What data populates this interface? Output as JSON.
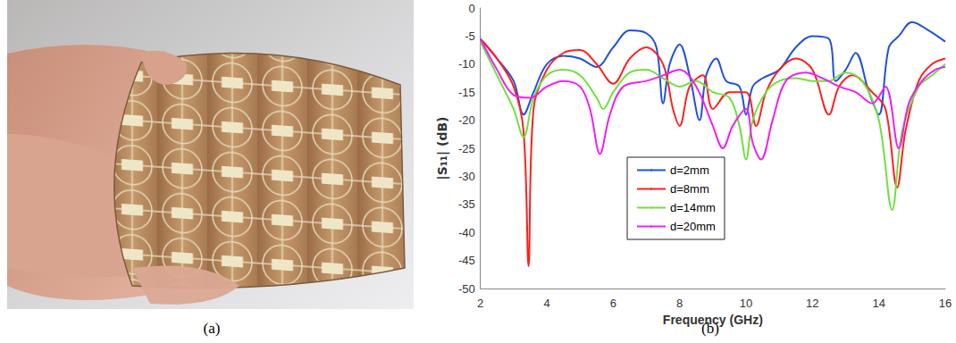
{
  "panels": {
    "a": "(a)",
    "b": "(b)"
  },
  "chart_data": {
    "type": "line",
    "x_label": "Frequency (GHz)",
    "y_label": "|S₁₁| (dB)",
    "xlim": [
      2,
      16
    ],
    "xticks": [
      2,
      4,
      6,
      8,
      10,
      12,
      14,
      16
    ],
    "ylim": [
      -50,
      0
    ],
    "yticks": [
      -50,
      -45,
      -40,
      -35,
      -30,
      -25,
      -20,
      -15,
      -10,
      -5,
      0
    ],
    "grid": false,
    "legend": "center",
    "series": [
      {
        "name": "d=2mm",
        "color": "#2050e0",
        "x": [
          2,
          2.5,
          3,
          3.3,
          3.6,
          4,
          4.5,
          5,
          5.5,
          6,
          6.5,
          7,
          7.3,
          7.5,
          7.7,
          8,
          8.3,
          8.6,
          8.8,
          9.1,
          9.4,
          9.8,
          10,
          10.2,
          10.5,
          11,
          11.5,
          12,
          12.5,
          12.7,
          13,
          13.3,
          13.7,
          14,
          14.3,
          14.6,
          15,
          15.5,
          16
        ],
        "values": [
          -5.5,
          -9,
          -13,
          -19,
          -15,
          -10,
          -8.5,
          -9,
          -10.5,
          -7,
          -4,
          -4.5,
          -7,
          -17,
          -10,
          -6.5,
          -12,
          -20,
          -12,
          -9,
          -13,
          -14,
          -19,
          -14,
          -12.5,
          -11,
          -7,
          -5,
          -5.5,
          -13,
          -11,
          -8,
          -15,
          -19,
          -7,
          -5,
          -2.5,
          -4,
          -6
        ]
      },
      {
        "name": "d=8mm",
        "color": "#ff2020",
        "x": [
          2,
          2.5,
          3,
          3.3,
          3.45,
          3.6,
          4,
          4.5,
          5,
          5.5,
          6,
          6.5,
          7,
          7.5,
          7.8,
          8,
          8.3,
          8.7,
          9,
          9.5,
          10,
          10.3,
          10.6,
          11,
          11.5,
          12,
          12.5,
          12.8,
          13.2,
          13.8,
          14.2,
          14.55,
          14.8,
          15.2,
          15.6,
          16
        ],
        "values": [
          -5.5,
          -9,
          -14,
          -22,
          -46,
          -18,
          -11,
          -8,
          -7.5,
          -10,
          -13.5,
          -9,
          -7,
          -10,
          -18,
          -21,
          -14,
          -12,
          -18,
          -15,
          -15,
          -21,
          -15,
          -11,
          -9,
          -11,
          -19,
          -14,
          -12,
          -15,
          -18,
          -32,
          -22,
          -13,
          -10,
          -9
        ]
      },
      {
        "name": "d=14mm",
        "color": "#70e040",
        "x": [
          2,
          2.5,
          3,
          3.3,
          3.6,
          4,
          4.5,
          5,
          5.5,
          5.7,
          6,
          6.5,
          7,
          7.5,
          8,
          8.5,
          9,
          9.5,
          9.8,
          10,
          10.2,
          10.6,
          11,
          11.5,
          12,
          12.5,
          13,
          13.5,
          14,
          14.4,
          14.7,
          15.2,
          15.6,
          16
        ],
        "values": [
          -6,
          -12,
          -18,
          -23,
          -16,
          -12,
          -11,
          -12,
          -16,
          -18,
          -15,
          -11.5,
          -11,
          -12.5,
          -14,
          -13,
          -15,
          -16,
          -21,
          -27,
          -20,
          -15,
          -13,
          -12.5,
          -13,
          -13,
          -11.5,
          -13,
          -20,
          -36,
          -22,
          -14,
          -12,
          -10
        ]
      },
      {
        "name": "d=20mm",
        "color": "#f020f0",
        "x": [
          2,
          2.5,
          3,
          3.5,
          4,
          4.5,
          5,
          5.3,
          5.6,
          5.9,
          6.3,
          7,
          7.5,
          8,
          8.5,
          9,
          9.3,
          9.6,
          10,
          10.2,
          10.45,
          10.8,
          11.2,
          11.8,
          12.3,
          12.8,
          13.3,
          13.8,
          14.2,
          14.6,
          14.9,
          15.3,
          15.7,
          16
        ],
        "values": [
          -5.5,
          -11,
          -15.5,
          -16,
          -14,
          -13,
          -14,
          -18,
          -26,
          -19,
          -14,
          -13,
          -12,
          -11,
          -14,
          -21,
          -25,
          -21,
          -18,
          -24,
          -27,
          -20,
          -13,
          -11.5,
          -12.5,
          -14,
          -15,
          -17,
          -14,
          -25,
          -17,
          -13,
          -11,
          -10.5
        ]
      }
    ]
  }
}
